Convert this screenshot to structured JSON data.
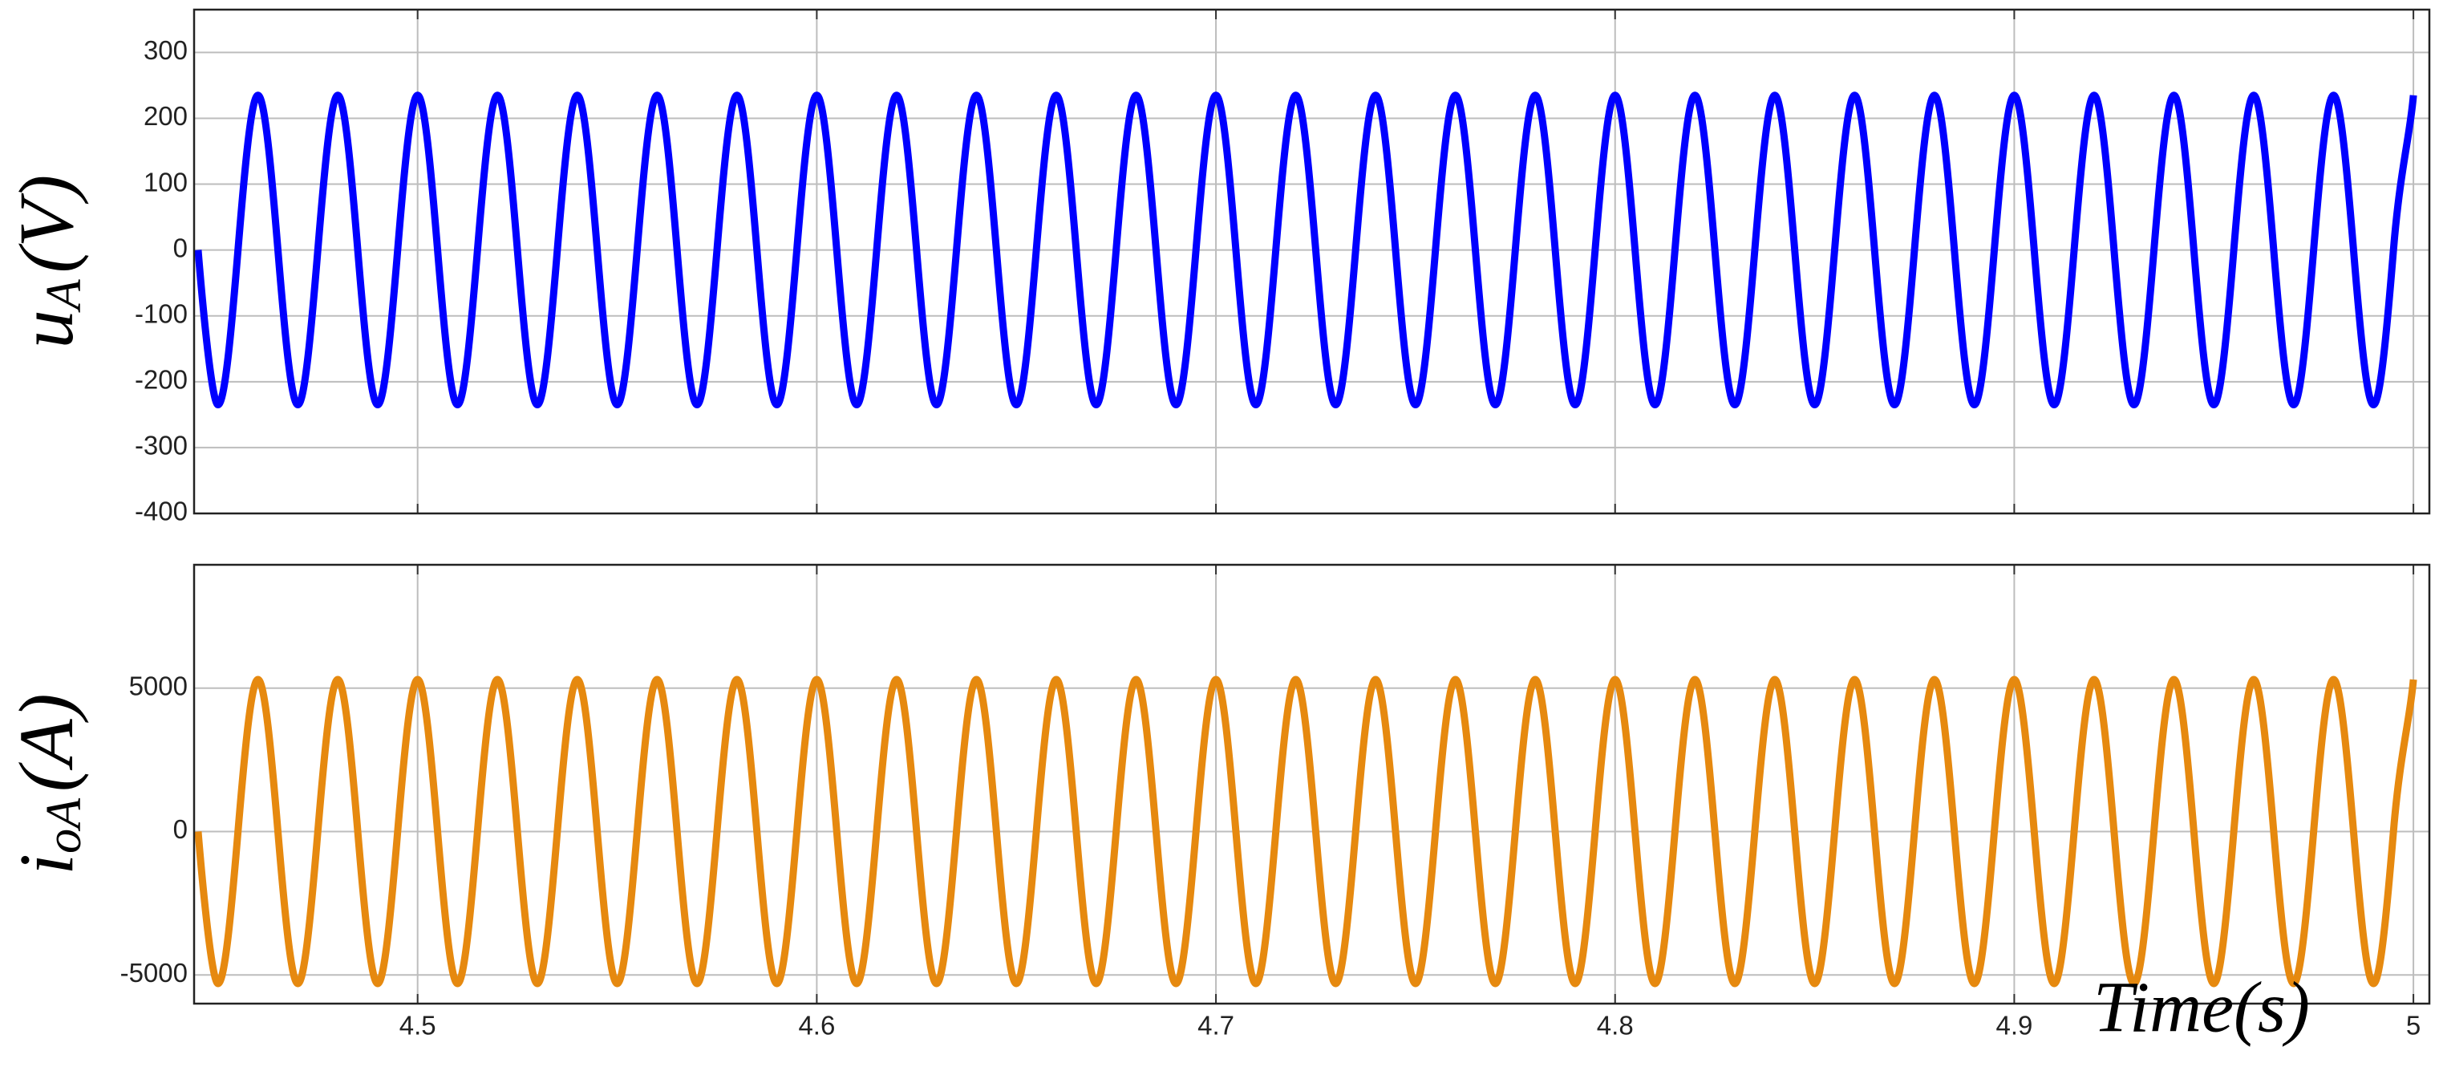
{
  "chart_data": [
    {
      "type": "line",
      "ylabel": "u",
      "ylabel_sub": "A",
      "ylabel_unit": "(V)",
      "xlim": [
        4.444,
        5.004
      ],
      "ylim": [
        -400,
        365
      ],
      "xticks": [
        4.5,
        4.6,
        4.7,
        4.8,
        4.9,
        5
      ],
      "yticks": [
        -400,
        -300,
        -200,
        -100,
        0,
        100,
        200,
        300
      ],
      "grid": true,
      "show_xtick_labels": false,
      "x": [
        4.445,
        4.45,
        4.455,
        4.46,
        4.465,
        4.47,
        4.475,
        4.48,
        4.485,
        4.49,
        4.495,
        4.5,
        4.505,
        4.51,
        4.515,
        4.52,
        4.525,
        4.53,
        4.535,
        4.54,
        4.545,
        4.55,
        4.555,
        4.56,
        4.565,
        4.57,
        4.575,
        4.58,
        4.585,
        4.59,
        4.595,
        4.6,
        4.605,
        4.61,
        4.615,
        4.62,
        4.625,
        4.63,
        4.635,
        4.64,
        4.645,
        4.65,
        4.655,
        4.66,
        4.665,
        4.67,
        4.675,
        4.68,
        4.685,
        4.69,
        4.695,
        4.7,
        4.705,
        4.71,
        4.715,
        4.72,
        4.725,
        4.73,
        4.735,
        4.74,
        4.745,
        4.75,
        4.755,
        4.76,
        4.765,
        4.77,
        4.775,
        4.78,
        4.785,
        4.79,
        4.795,
        4.8,
        4.805,
        4.81,
        4.815,
        4.82,
        4.825,
        4.83,
        4.835,
        4.84,
        4.845,
        4.85,
        4.855,
        4.86,
        4.865,
        4.87,
        4.875,
        4.88,
        4.885,
        4.89,
        4.895,
        4.9,
        4.905,
        4.91,
        4.915,
        4.92,
        4.925,
        4.93,
        4.935,
        4.94,
        4.945,
        4.95,
        4.955,
        4.96,
        4.965,
        4.97,
        4.975,
        4.98,
        4.985,
        4.99,
        4.995,
        5.0
      ],
      "series": [
        {
          "color": "#0000ff",
          "values": [
            0,
            -235,
            0,
            235,
            0,
            -235,
            0,
            235,
            0,
            -235,
            0,
            235,
            0,
            -235,
            0,
            235,
            0,
            -235,
            0,
            235,
            0,
            -235,
            0,
            235,
            0,
            -235,
            0,
            235,
            0,
            -235,
            0,
            235,
            0,
            -235,
            0,
            235,
            0,
            -235,
            0,
            235,
            0,
            -235,
            0,
            235,
            0,
            -235,
            0,
            235,
            0,
            -235,
            0,
            235,
            0,
            -235,
            0,
            235,
            0,
            -235,
            0,
            235,
            0,
            -235,
            0,
            235,
            0,
            -235,
            0,
            235,
            0,
            -235,
            0,
            235,
            0,
            -235,
            0,
            235,
            0,
            -235,
            0,
            235,
            0,
            -235,
            0,
            235,
            0,
            -235,
            0,
            235,
            0,
            -235,
            0,
            235,
            0,
            -235,
            0,
            235,
            0,
            -235,
            0,
            235,
            0,
            -235,
            0,
            235,
            0,
            -235,
            0,
            235,
            0,
            -235,
            0,
            235
          ]
        }
      ]
    },
    {
      "type": "line",
      "ylabel": "i",
      "ylabel_sub": "oA",
      "ylabel_unit": "(A)",
      "xlabel": "Time(s)",
      "xlim": [
        4.444,
        5.004
      ],
      "ylim": [
        -6000,
        9300
      ],
      "xticks": [
        4.5,
        4.6,
        4.7,
        4.8,
        4.9,
        5
      ],
      "yticks": [
        -5000,
        0,
        5000
      ],
      "grid": true,
      "show_xtick_labels": true,
      "x": [
        4.445,
        4.45,
        4.455,
        4.46,
        4.465,
        4.47,
        4.475,
        4.48,
        4.485,
        4.49,
        4.495,
        4.5,
        4.505,
        4.51,
        4.515,
        4.52,
        4.525,
        4.53,
        4.535,
        4.54,
        4.545,
        4.55,
        4.555,
        4.56,
        4.565,
        4.57,
        4.575,
        4.58,
        4.585,
        4.59,
        4.595,
        4.6,
        4.605,
        4.61,
        4.615,
        4.62,
        4.625,
        4.63,
        4.635,
        4.64,
        4.645,
        4.65,
        4.655,
        4.66,
        4.665,
        4.67,
        4.675,
        4.68,
        4.685,
        4.69,
        4.695,
        4.7,
        4.705,
        4.71,
        4.715,
        4.72,
        4.725,
        4.73,
        4.735,
        4.74,
        4.745,
        4.75,
        4.755,
        4.76,
        4.765,
        4.77,
        4.775,
        4.78,
        4.785,
        4.79,
        4.795,
        4.8,
        4.805,
        4.81,
        4.815,
        4.82,
        4.825,
        4.83,
        4.835,
        4.84,
        4.845,
        4.85,
        4.855,
        4.86,
        4.865,
        4.87,
        4.875,
        4.88,
        4.885,
        4.89,
        4.895,
        4.9,
        4.905,
        4.91,
        4.915,
        4.92,
        4.925,
        4.93,
        4.935,
        4.94,
        4.945,
        4.95,
        4.955,
        4.96,
        4.965,
        4.97,
        4.975,
        4.98,
        4.985,
        4.99,
        4.995,
        5.0
      ],
      "series": [
        {
          "color": "#e6890f",
          "values": [
            0,
            -5300,
            0,
            5300,
            0,
            -5300,
            0,
            5300,
            0,
            -5300,
            0,
            5300,
            0,
            -5300,
            0,
            5300,
            0,
            -5300,
            0,
            5300,
            0,
            -5300,
            0,
            5300,
            0,
            -5300,
            0,
            5300,
            0,
            -5300,
            0,
            5300,
            0,
            -5300,
            0,
            5300,
            0,
            -5300,
            0,
            5300,
            0,
            -5300,
            0,
            5300,
            0,
            -5300,
            0,
            5300,
            0,
            -5300,
            0,
            5300,
            0,
            -5300,
            0,
            5300,
            0,
            -5300,
            0,
            5300,
            0,
            -5300,
            0,
            5300,
            0,
            -5300,
            0,
            5300,
            0,
            -5300,
            0,
            5300,
            0,
            -5300,
            0,
            5300,
            0,
            -5300,
            0,
            5300,
            0,
            -5300,
            0,
            5300,
            0,
            -5300,
            0,
            5300,
            0,
            -5300,
            0,
            5300,
            0,
            -5300,
            0,
            5300,
            0,
            -5300,
            0,
            5300,
            0,
            -5300,
            0,
            5300,
            0,
            -5300,
            0,
            5300,
            0,
            -5300,
            0,
            5300
          ]
        }
      ]
    }
  ]
}
